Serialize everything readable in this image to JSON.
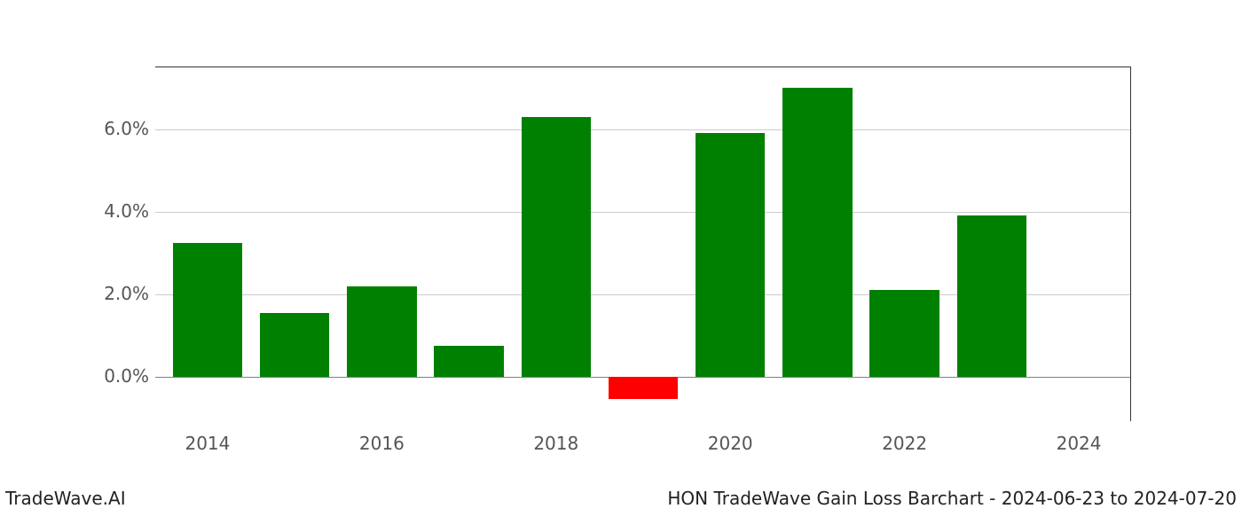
{
  "chart": {
    "type": "bar",
    "years": [
      2014,
      2015,
      2016,
      2017,
      2018,
      2019,
      2020,
      2021,
      2022,
      2023
    ],
    "values": [
      3.25,
      1.55,
      2.2,
      0.75,
      6.3,
      -0.55,
      5.9,
      7.0,
      2.1,
      3.9
    ],
    "bar_colors": [
      "#008000",
      "#008000",
      "#008000",
      "#008000",
      "#008000",
      "#ff0000",
      "#008000",
      "#008000",
      "#008000",
      "#008000"
    ],
    "positive_color": "#008000",
    "negative_color": "#ff0000",
    "background_color": "#ffffff",
    "grid_color": "#cccccc",
    "zero_line_color": "#808080",
    "ylim_min": -1.1,
    "ylim_max": 7.5,
    "y_ticks": [
      {
        "v": 0.0,
        "label": "0.0%"
      },
      {
        "v": 2.0,
        "label": "2.0%"
      },
      {
        "v": 4.0,
        "label": "4.0%"
      },
      {
        "v": 6.0,
        "label": "6.0%"
      }
    ],
    "x_ticks": [
      {
        "v": 2014,
        "label": "2014"
      },
      {
        "v": 2016,
        "label": "2016"
      },
      {
        "v": 2018,
        "label": "2018"
      },
      {
        "v": 2020,
        "label": "2020"
      },
      {
        "v": 2022,
        "label": "2022"
      },
      {
        "v": 2024,
        "label": "2024"
      }
    ],
    "xlim_min": 2013.4,
    "xlim_max": 2024.6,
    "bar_width_years": 0.8,
    "tick_label_fontsize": 20,
    "tick_label_color": "#555555",
    "footer_fontsize": 20
  },
  "footer": {
    "left": "TradeWave.AI",
    "right": "HON TradeWave Gain Loss Barchart - 2024-06-23 to 2024-07-20"
  }
}
